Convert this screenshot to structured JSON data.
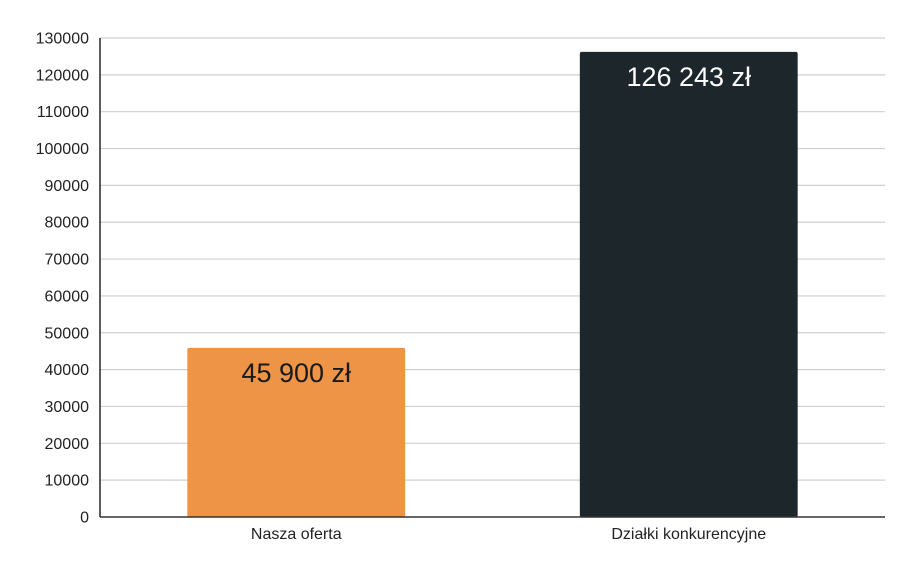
{
  "chart_data": {
    "type": "bar",
    "categories": [
      "Nasza oferta",
      "Działki konkurencyjne"
    ],
    "values": [
      45900,
      126243
    ],
    "data_labels": [
      "45 900 zł",
      "126 243 zł"
    ],
    "bar_colors": [
      "#ed9447",
      "#1c262b"
    ],
    "data_label_colors": [
      "#1a1a1a",
      "#ffffff"
    ],
    "ylim": [
      0,
      130000
    ],
    "yticks": [
      0,
      10000,
      20000,
      30000,
      40000,
      50000,
      60000,
      70000,
      80000,
      90000,
      100000,
      110000,
      120000,
      130000
    ],
    "grid": true,
    "legend": "none",
    "title": "",
    "xlabel": "",
    "ylabel": ""
  }
}
